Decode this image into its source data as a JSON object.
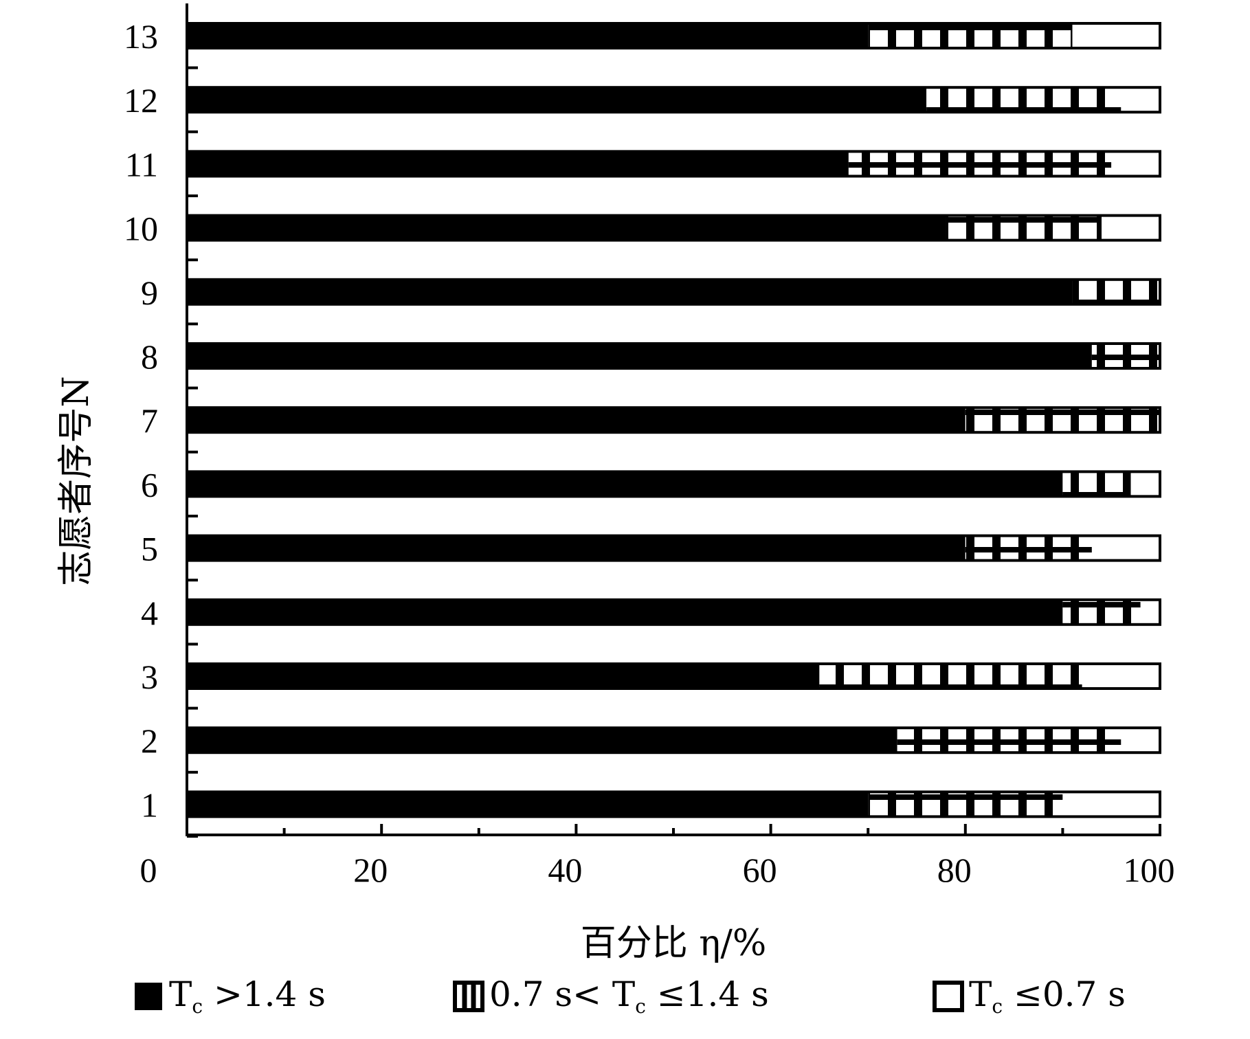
{
  "chart_data": {
    "type": "bar",
    "orientation": "horizontal",
    "stacked": true,
    "xlabel": "百分比 η/%",
    "ylabel": "志愿者序号N",
    "xlim": [
      0,
      100
    ],
    "xticks": [
      0,
      20,
      40,
      60,
      80,
      100
    ],
    "categories": [
      "1",
      "2",
      "3",
      "4",
      "5",
      "6",
      "7",
      "8",
      "9",
      "10",
      "11",
      "12",
      "13"
    ],
    "series": [
      {
        "name": "Tc > 1.4 s",
        "values": [
          70,
          73,
          65,
          90,
          80,
          90,
          80,
          93,
          91,
          78,
          68,
          76,
          70
        ]
      },
      {
        "name": "0.7 s < Tc ≤ 1.4 s",
        "values": [
          20,
          23,
          27,
          8,
          13,
          7,
          20,
          7,
          9,
          16,
          27,
          20,
          21
        ]
      },
      {
        "name": "Tc ≤ 0.7 s",
        "values": [
          10,
          4,
          8,
          2,
          7,
          3,
          0,
          0,
          0,
          6,
          5,
          4,
          9
        ]
      }
    ],
    "legend": {
      "placement": "bottom",
      "items": [
        {
          "style": "solid",
          "label_prefix": "T",
          "label_sub": "c",
          "label_suffix": " >1.4 s"
        },
        {
          "style": "striped",
          "label_prefix": "0.7 s< T",
          "label_sub": "c",
          "label_suffix": " ≤1.4 s"
        },
        {
          "style": "hollow",
          "label_prefix": "T",
          "label_sub": "c",
          "label_suffix": " ≤0.7 s"
        }
      ]
    },
    "colors": {
      "ink": "#000000",
      "paper": "#ffffff"
    }
  }
}
